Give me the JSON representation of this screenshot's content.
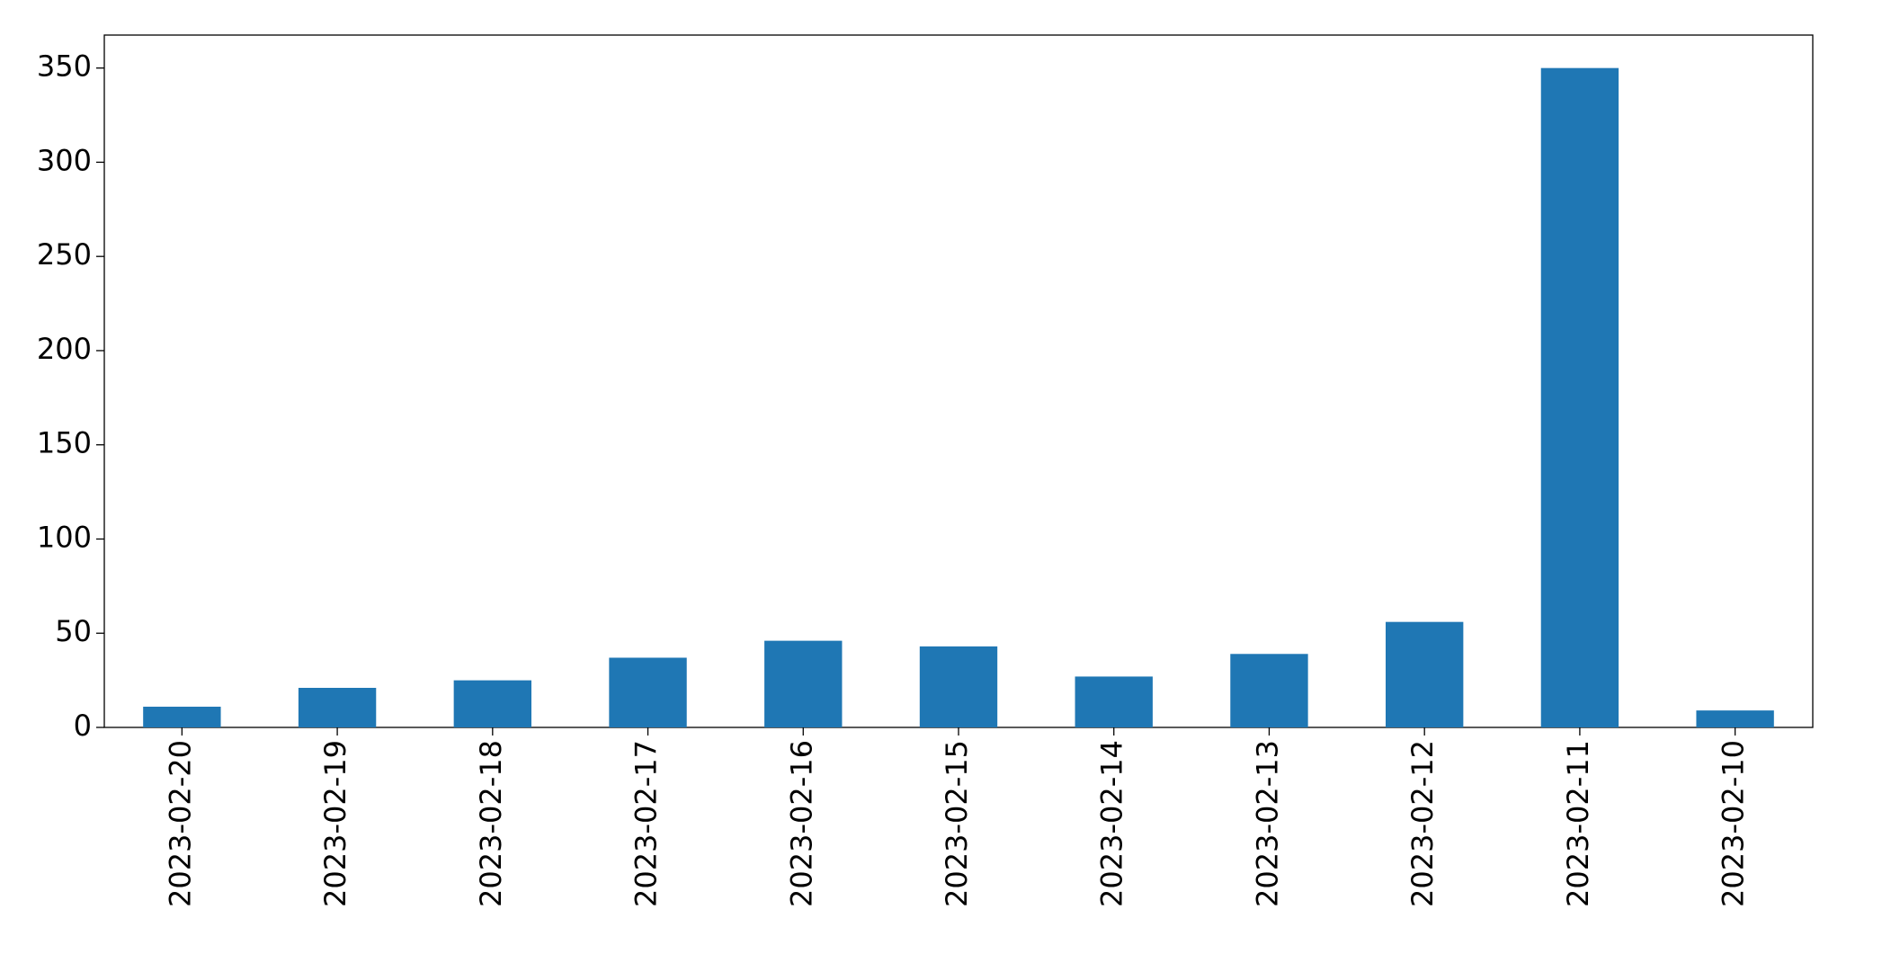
{
  "chart_data": {
    "type": "bar",
    "categories": [
      "2023-02-20",
      "2023-02-19",
      "2023-02-18",
      "2023-02-17",
      "2023-02-16",
      "2023-02-15",
      "2023-02-14",
      "2023-02-13",
      "2023-02-12",
      "2023-02-11",
      "2023-02-10"
    ],
    "values": [
      11,
      21,
      25,
      37,
      46,
      43,
      27,
      39,
      56,
      350,
      9
    ],
    "color": "#1f77b4",
    "ylim": [
      0,
      367.5
    ],
    "yticks": [
      0,
      50,
      100,
      150,
      200,
      250,
      300,
      350
    ],
    "grid": false
  }
}
